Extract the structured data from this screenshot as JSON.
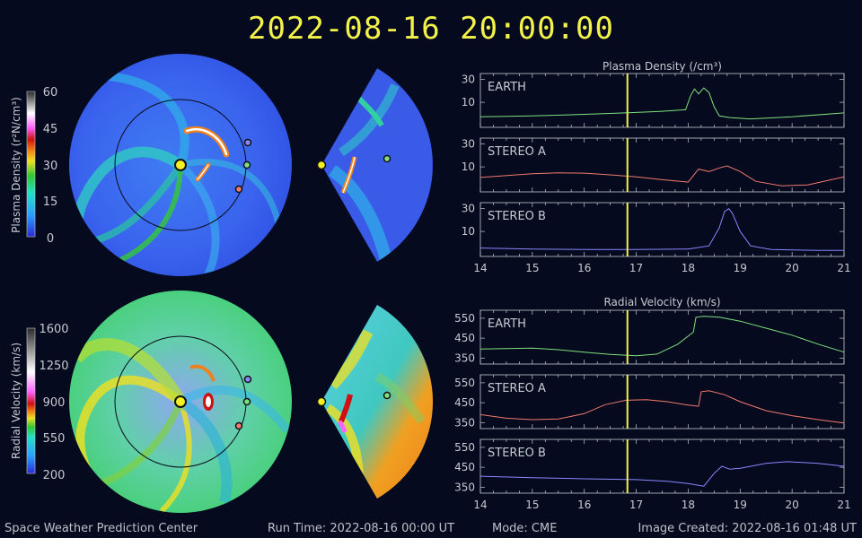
{
  "title": "2022-08-16 20:00:00",
  "footer": {
    "org": "Space Weather Prediction Center",
    "run_time": "Run Time: 2022-08-16 00:00 UT",
    "mode": "Mode: CME",
    "created": "Image Created: 2022-08-16 01:48 UT"
  },
  "colors": {
    "title": "#f2f24a",
    "earth": "#7fe07f",
    "stereo_a": "#f07a6e",
    "stereo_b": "#8a86ff",
    "now_line": "#f2f24a",
    "background": "#050a1e"
  },
  "colorbars": [
    {
      "label": "Plasma Density (r²N/cm³)",
      "ticks": [
        "60",
        "45",
        "30",
        "15",
        "0"
      ]
    },
    {
      "label": "Radial Velocity (km/s)",
      "ticks": [
        "1600",
        "1250",
        "900",
        "550",
        "200"
      ]
    }
  ],
  "chart_data": [
    {
      "type": "line",
      "title": "Plasma Density (/cm³)",
      "xlim": [
        14,
        21
      ],
      "x_ticks": [
        "14",
        "15",
        "16",
        "17",
        "18",
        "19",
        "20",
        "21"
      ],
      "current_time": 16.83,
      "panels": [
        {
          "name": "EARTH",
          "color": "#7fe07f",
          "ylim": [
            3,
            40
          ],
          "y_ticks": [
            "30",
            "10"
          ],
          "x": [
            14,
            15,
            16,
            16.8,
            17.5,
            17.95,
            18.05,
            18.12,
            18.2,
            18.3,
            18.4,
            18.5,
            18.6,
            18.8,
            19.2,
            20,
            21
          ],
          "y": [
            5,
            5.2,
            5.6,
            6,
            6.5,
            7,
            14,
            19,
            15,
            20,
            16,
            8,
            5.2,
            4.8,
            4.5,
            5,
            6
          ]
        },
        {
          "name": "STEREO A",
          "color": "#f07a6e",
          "ylim": [
            3,
            40
          ],
          "y_ticks": [
            "30",
            "10"
          ],
          "x": [
            14,
            15,
            15.5,
            16,
            16.5,
            17,
            17.5,
            18,
            18.2,
            18.4,
            18.6,
            18.75,
            19,
            19.3,
            19.8,
            20.3,
            21
          ],
          "y": [
            6,
            7.2,
            7.5,
            7.4,
            6.8,
            6.2,
            5.4,
            4.8,
            9,
            8,
            9.5,
            10.5,
            8,
            5,
            4,
            4.2,
            6.2
          ]
        },
        {
          "name": "STEREO B",
          "color": "#8a86ff",
          "ylim": [
            3,
            40
          ],
          "y_ticks": [
            "30",
            "10"
          ],
          "x": [
            14,
            15,
            16,
            17,
            18,
            18.4,
            18.6,
            18.7,
            18.78,
            18.85,
            19,
            19.2,
            19.6,
            20.5,
            21
          ],
          "y": [
            4.5,
            4.3,
            4.2,
            4.2,
            4.3,
            5,
            12,
            26,
            30,
            24,
            10,
            5,
            4.2,
            4,
            4
          ]
        }
      ]
    },
    {
      "type": "line",
      "title": "Radial Velocity (km/s)",
      "xlim": [
        14,
        21
      ],
      "x_ticks": [
        "14",
        "15",
        "16",
        "17",
        "18",
        "19",
        "20",
        "21"
      ],
      "current_time": 16.83,
      "panels": [
        {
          "name": "EARTH",
          "color": "#7fe07f",
          "ylim": [
            320,
            590
          ],
          "y_ticks": [
            "550",
            "450",
            "350"
          ],
          "x": [
            14,
            14.5,
            15,
            15.5,
            16,
            16.5,
            17,
            17.4,
            17.8,
            18.1,
            18.15,
            18.3,
            18.6,
            19,
            19.5,
            20,
            20.5,
            21
          ],
          "y": [
            395,
            398,
            400,
            392,
            380,
            368,
            362,
            370,
            420,
            480,
            555,
            560,
            555,
            535,
            500,
            465,
            420,
            380
          ]
        },
        {
          "name": "STEREO A",
          "color": "#f07a6e",
          "ylim": [
            320,
            590
          ],
          "y_ticks": [
            "550",
            "450",
            "350"
          ],
          "x": [
            14,
            14.5,
            15,
            15.5,
            16,
            16.4,
            16.8,
            17.2,
            17.6,
            18,
            18.2,
            18.25,
            18.4,
            18.7,
            19,
            19.5,
            20,
            20.5,
            21
          ],
          "y": [
            390,
            372,
            365,
            368,
            395,
            440,
            462,
            465,
            455,
            438,
            432,
            505,
            510,
            490,
            455,
            410,
            385,
            365,
            348
          ]
        },
        {
          "name": "STEREO B",
          "color": "#8a86ff",
          "ylim": [
            320,
            590
          ],
          "y_ticks": [
            "550",
            "450",
            "350"
          ],
          "x": [
            14,
            15,
            16,
            17,
            17.6,
            18,
            18.3,
            18.5,
            18.65,
            18.8,
            19,
            19.5,
            19.9,
            20.5,
            21
          ],
          "y": [
            405,
            398,
            392,
            388,
            380,
            368,
            355,
            420,
            455,
            440,
            445,
            470,
            478,
            470,
            455
          ]
        }
      ]
    }
  ]
}
